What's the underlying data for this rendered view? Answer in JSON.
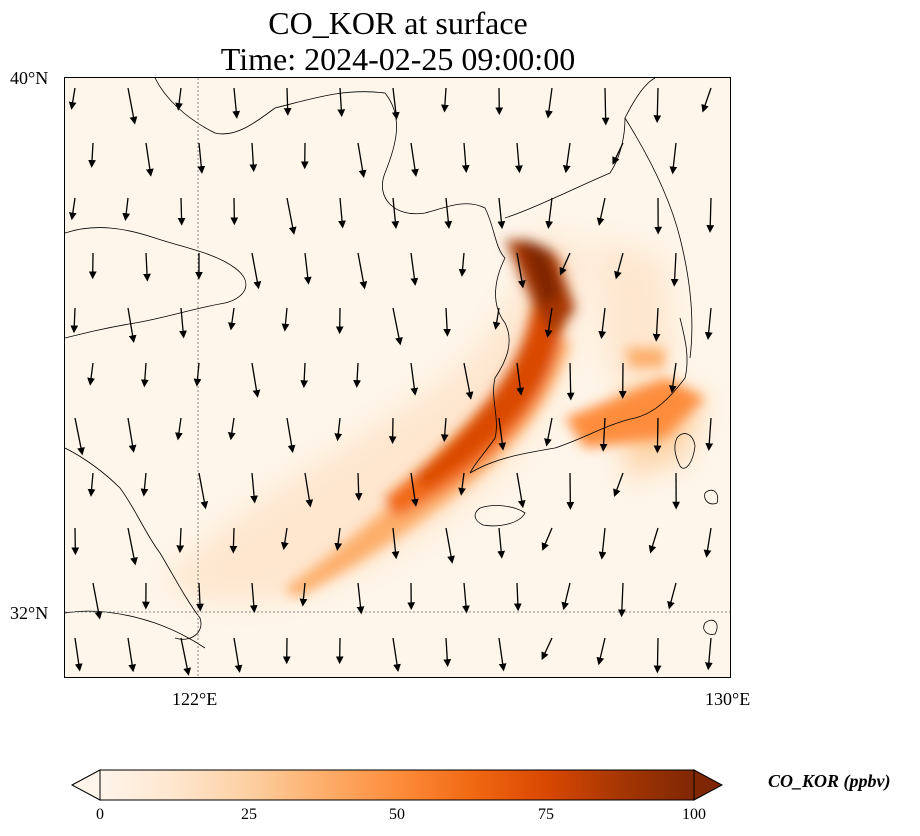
{
  "title": {
    "line1": "CO_KOR at surface",
    "line2": "Time: 2024-02-25 09:00:00"
  },
  "axes": {
    "lat_labels": [
      "40°N",
      "32°N"
    ],
    "lon_labels": [
      "122°E",
      "130°E"
    ],
    "lon_range": [
      120,
      130
    ],
    "lat_range": [
      31,
      40
    ],
    "gridlines": {
      "lon": [
        122
      ],
      "lat": [
        32
      ],
      "style": "dotted"
    }
  },
  "colorbar": {
    "title": "CO_KOR (ppbv)",
    "ticks": [
      "0",
      "25",
      "50",
      "75",
      "100"
    ],
    "range": [
      0,
      100
    ],
    "extend": "both",
    "colormap": [
      "#fff5eb",
      "#fee6ce",
      "#fdd0a2",
      "#fdae6b",
      "#fd8d3c",
      "#f16913",
      "#d94801",
      "#a63603",
      "#7f2704"
    ]
  },
  "chart_data": {
    "type": "heatmap",
    "variable": "CO_KOR",
    "level": "surface",
    "units": "ppbv",
    "time": "2024-02-25 09:00:00",
    "plume_centerline": [
      {
        "lon": 127.0,
        "lat": 38.2,
        "value": 98
      },
      {
        "lon": 127.3,
        "lat": 37.3,
        "value": 92
      },
      {
        "lon": 126.8,
        "lat": 36.2,
        "value": 85
      },
      {
        "lon": 126.2,
        "lat": 35.2,
        "value": 78
      },
      {
        "lon": 125.4,
        "lat": 34.3,
        "value": 65
      },
      {
        "lon": 124.6,
        "lat": 33.4,
        "value": 45
      },
      {
        "lon": 123.6,
        "lat": 32.6,
        "value": 28
      },
      {
        "lon": 122.8,
        "lat": 32.4,
        "value": 18
      }
    ],
    "secondary_plume": [
      {
        "lon": 128.5,
        "lat": 35.4,
        "value": 40
      },
      {
        "lon": 128.0,
        "lat": 36.4,
        "value": 32
      },
      {
        "lon": 127.8,
        "lat": 37.3,
        "value": 28
      }
    ],
    "wind_vectors": "southward-pointing arrows (northerly wind) across domain"
  }
}
